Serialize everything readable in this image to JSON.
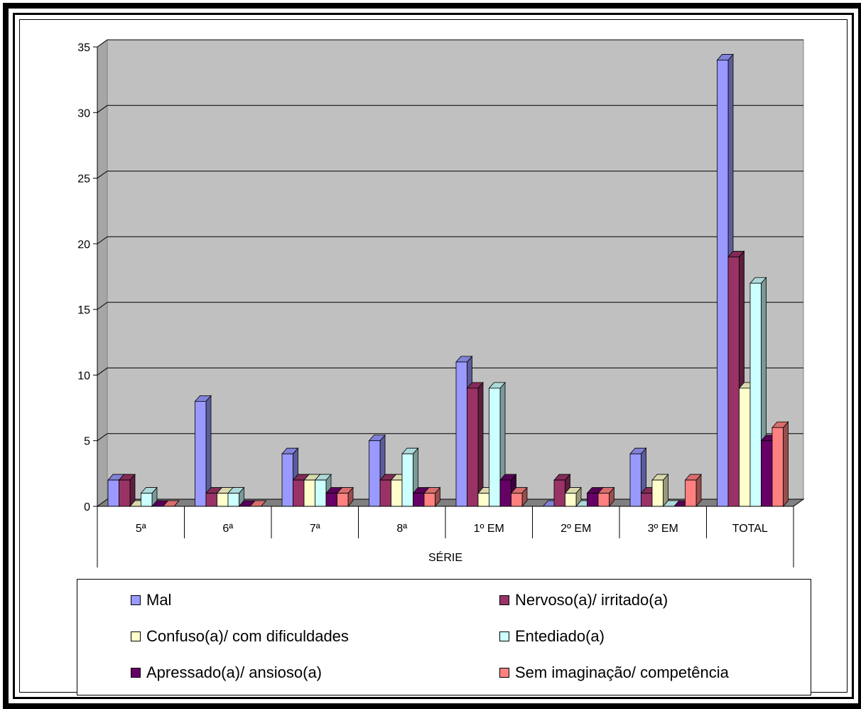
{
  "chart_data": {
    "type": "bar",
    "title": "",
    "xlabel": "SÉRIE",
    "ylabel": "",
    "ylim": [
      0,
      35
    ],
    "yticks": [
      0,
      5,
      10,
      15,
      20,
      25,
      30,
      35
    ],
    "grid": true,
    "legend_position": "bottom",
    "categories": [
      "5ª",
      "6ª",
      "7ª",
      "8ª",
      "1º EM",
      "2º EM",
      "3º EM",
      "TOTAL"
    ],
    "series": [
      {
        "name": "Mal",
        "color": "#9999ff",
        "values": [
          2,
          8,
          4,
          5,
          11,
          0,
          4,
          34
        ]
      },
      {
        "name": "Nervoso(a)/ irritado(a)",
        "color": "#993366",
        "values": [
          2,
          1,
          2,
          2,
          9,
          2,
          1,
          19
        ]
      },
      {
        "name": "Confuso(a)/ com dificuldades",
        "color": "#ffffcc",
        "values": [
          0,
          1,
          2,
          2,
          1,
          1,
          2,
          9
        ]
      },
      {
        "name": "Entediado(a)",
        "color": "#ccffff",
        "values": [
          1,
          1,
          2,
          4,
          9,
          0,
          0,
          17
        ]
      },
      {
        "name": "Apressado(a)/ ansioso(a)",
        "color": "#660066",
        "values": [
          0,
          0,
          1,
          1,
          2,
          1,
          0,
          5
        ]
      },
      {
        "name": "Sem imaginação/ competência",
        "color": "#ff8080",
        "values": [
          0,
          0,
          1,
          1,
          1,
          1,
          2,
          6
        ]
      }
    ],
    "plot_background": "#c0c0c0"
  }
}
